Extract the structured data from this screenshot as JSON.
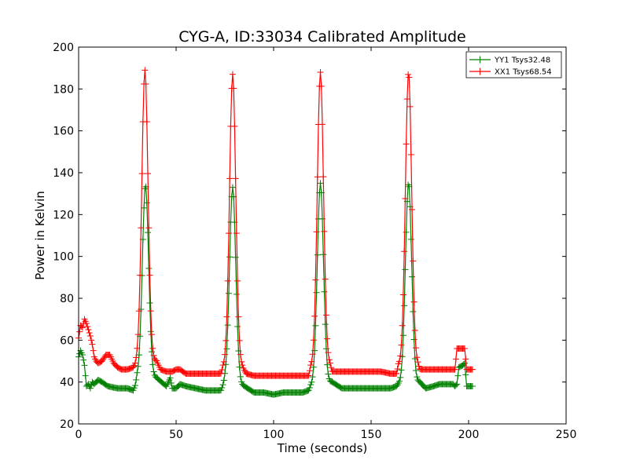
{
  "chart_data": {
    "type": "line",
    "title": "CYG-A, ID:33034 Calibrated Amplitude",
    "xlabel": "Time (seconds)",
    "ylabel": "Power in Kelvin",
    "xlim": [
      0,
      250
    ],
    "ylim": [
      20,
      200
    ],
    "xticks": [
      0,
      50,
      100,
      150,
      200,
      250
    ],
    "yticks": [
      20,
      40,
      60,
      80,
      100,
      120,
      140,
      160,
      180,
      200
    ],
    "grid": false,
    "legend_position": "top-right",
    "marker": "+",
    "series": [
      {
        "name": "YY1 Tsys32.48",
        "color": "#008000",
        "baseline": [
          [
            0,
            52
          ],
          [
            1,
            55
          ],
          [
            2,
            53
          ],
          [
            3,
            48
          ],
          [
            4,
            38
          ],
          [
            5,
            39
          ],
          [
            6,
            37
          ],
          [
            7,
            40
          ],
          [
            8,
            39
          ],
          [
            10,
            41
          ],
          [
            12,
            40
          ],
          [
            15,
            38
          ],
          [
            20,
            37
          ],
          [
            25,
            37
          ],
          [
            28,
            36
          ],
          [
            29,
            38
          ],
          [
            30,
            42
          ],
          [
            40,
            42
          ],
          [
            45,
            38
          ],
          [
            47,
            42
          ],
          [
            48,
            37
          ],
          [
            50,
            37
          ],
          [
            52,
            39
          ],
          [
            55,
            38
          ],
          [
            60,
            37
          ],
          [
            65,
            36
          ],
          [
            70,
            36
          ],
          [
            73,
            36
          ],
          [
            75,
            40
          ],
          [
            85,
            38
          ],
          [
            90,
            35
          ],
          [
            95,
            35
          ],
          [
            100,
            34
          ],
          [
            105,
            35
          ],
          [
            110,
            35
          ],
          [
            115,
            35
          ],
          [
            118,
            36
          ],
          [
            119,
            38
          ],
          [
            130,
            40
          ],
          [
            135,
            37
          ],
          [
            140,
            37
          ],
          [
            145,
            37
          ],
          [
            150,
            37
          ],
          [
            155,
            37
          ],
          [
            160,
            37
          ],
          [
            163,
            38
          ],
          [
            164,
            39
          ],
          [
            175,
            40
          ],
          [
            178,
            37
          ],
          [
            182,
            38
          ],
          [
            185,
            39
          ],
          [
            188,
            39
          ],
          [
            192,
            39
          ],
          [
            193,
            38
          ],
          [
            194,
            39
          ],
          [
            195,
            47
          ],
          [
            197,
            48
          ],
          [
            198,
            49
          ],
          [
            199,
            38
          ],
          [
            202,
            38
          ]
        ],
        "peaks": [
          {
            "center": 34.3,
            "height": 134
          },
          {
            "center": 79.0,
            "height": 133
          },
          {
            "center": 124.0,
            "height": 135
          },
          {
            "center": 169.2,
            "height": 135
          }
        ]
      },
      {
        "name": "XX1 Tsys68.54",
        "color": "#ff0000",
        "baseline": [
          [
            0,
            61
          ],
          [
            1,
            67
          ],
          [
            2,
            66
          ],
          [
            3,
            70
          ],
          [
            4,
            68
          ],
          [
            5,
            65
          ],
          [
            6,
            62
          ],
          [
            7,
            58
          ],
          [
            8,
            52
          ],
          [
            9,
            50
          ],
          [
            10,
            49
          ],
          [
            12,
            50
          ],
          [
            14,
            53
          ],
          [
            16,
            53
          ],
          [
            18,
            49
          ],
          [
            20,
            47
          ],
          [
            22,
            46
          ],
          [
            25,
            46
          ],
          [
            28,
            47
          ],
          [
            29,
            48
          ],
          [
            30,
            50
          ],
          [
            40,
            50
          ],
          [
            42,
            46
          ],
          [
            45,
            45
          ],
          [
            48,
            45
          ],
          [
            50,
            46
          ],
          [
            52,
            46
          ],
          [
            55,
            44
          ],
          [
            60,
            44
          ],
          [
            65,
            44
          ],
          [
            70,
            44
          ],
          [
            73,
            44
          ],
          [
            74,
            47
          ],
          [
            84,
            47
          ],
          [
            86,
            44
          ],
          [
            90,
            43
          ],
          [
            95,
            43
          ],
          [
            100,
            43
          ],
          [
            105,
            43
          ],
          [
            110,
            43
          ],
          [
            115,
            43
          ],
          [
            118,
            43
          ],
          [
            119,
            47
          ],
          [
            129,
            48
          ],
          [
            130,
            45
          ],
          [
            135,
            45
          ],
          [
            140,
            45
          ],
          [
            145,
            45
          ],
          [
            150,
            45
          ],
          [
            155,
            45
          ],
          [
            160,
            44
          ],
          [
            163,
            44
          ],
          [
            164,
            48
          ],
          [
            174,
            48
          ],
          [
            175,
            46
          ],
          [
            180,
            46
          ],
          [
            185,
            46
          ],
          [
            190,
            46
          ],
          [
            193,
            46
          ],
          [
            194,
            56
          ],
          [
            196,
            56
          ],
          [
            198,
            56
          ],
          [
            199,
            46
          ],
          [
            202,
            46
          ]
        ],
        "peaks": [
          {
            "center": 34.0,
            "height": 189
          },
          {
            "center": 79.0,
            "height": 187
          },
          {
            "center": 124.0,
            "height": 188
          },
          {
            "center": 169.2,
            "height": 188
          }
        ]
      }
    ]
  }
}
